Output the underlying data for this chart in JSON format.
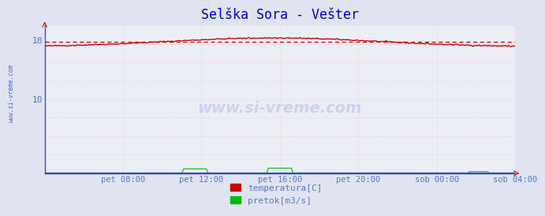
{
  "title": "Selška Sora - Vešter",
  "title_color": "#0000cc",
  "title_fontsize": 12,
  "bg_color": "#e0e4f0",
  "plot_bg_color": "#eceef6",
  "grid_color": "#ffbbbb",
  "left_spine_color": "#4444cc",
  "bottom_spine_color": "#4444cc",
  "side_label": "www.si-vreme.com",
  "watermark": "www.si-vreme.com",
  "watermark_color": "#4466cc",
  "xlim": [
    0,
    288
  ],
  "ylim": [
    0,
    20
  ],
  "avg_line_value": 17.8,
  "avg_line_color": "#cc0000",
  "temp_color": "#cc0000",
  "pretok_color": "#00bb00",
  "visina_color": "#2244cc",
  "legend_label_color": "#5577cc",
  "legend_items": [
    {
      "label": "temperatura[C]",
      "color": "#cc0000"
    },
    {
      "label": "pretok[m3/s]",
      "color": "#00bb00"
    }
  ],
  "xtick_labels": [
    "pet 08:00",
    "pet 12:00",
    "pet 16:00",
    "pet 20:00",
    "sob 00:00",
    "sob 04:00"
  ],
  "xtick_positions": [
    48,
    96,
    144,
    192,
    240,
    288
  ],
  "ytick_labels": [
    "10",
    "18"
  ],
  "ytick_positions": [
    10,
    18
  ]
}
